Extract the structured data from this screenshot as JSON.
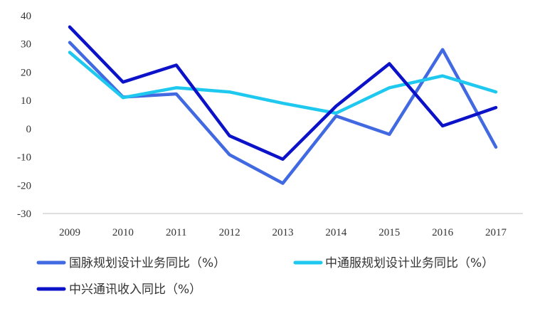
{
  "chart_data": {
    "type": "line",
    "categories": [
      "2009",
      "2010",
      "2011",
      "2012",
      "2013",
      "2014",
      "2015",
      "2016",
      "2017"
    ],
    "ylim": [
      -30,
      40
    ],
    "yticks": [
      "40",
      "30",
      "20",
      "10",
      "0",
      "-10",
      "-20",
      "-30"
    ],
    "ytick_values": [
      40,
      30,
      20,
      10,
      0,
      -10,
      -20,
      -30
    ],
    "grid": false,
    "legend_position": "bottom",
    "series": [
      {
        "name": "国脉规划设计业务同比（%）",
        "color": "#4169e1",
        "values": [
          30.5,
          11.2,
          12.3,
          -9.2,
          -19.3,
          4.5,
          -2.0,
          28.0,
          -6.5
        ]
      },
      {
        "name": "中通服规划设计业务同比（%）",
        "color": "#1ec8ee",
        "values": [
          27.0,
          11.0,
          14.5,
          13.0,
          9.0,
          5.5,
          14.5,
          18.7,
          13.0
        ]
      },
      {
        "name": "中兴通讯收入同比（%）",
        "color": "#0c12c8",
        "values": [
          36.0,
          16.5,
          22.5,
          -2.5,
          -10.8,
          8.0,
          23.0,
          1.0,
          7.5
        ]
      }
    ]
  }
}
